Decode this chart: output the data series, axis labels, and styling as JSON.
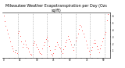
{
  "title": "Milwaukee Weather Evapotranspiration per Day (Ozs sq/ft)",
  "title_fontsize": 3.5,
  "dot_color": "#FF0000",
  "dot_color2": "#000000",
  "background_color": "#FFFFFF",
  "grid_color": "#999999",
  "ylim": [
    0.0,
    0.65
  ],
  "yticks": [
    0.1,
    0.2,
    0.3,
    0.4,
    0.5,
    0.6
  ],
  "ytick_labels": [
    ".1",
    ".2",
    ".3",
    ".4",
    ".5",
    ".6"
  ],
  "x_values": [
    0,
    1,
    2,
    3,
    4,
    5,
    6,
    7,
    8,
    9,
    10,
    11,
    12,
    13,
    14,
    15,
    16,
    17,
    18,
    19,
    20,
    21,
    22,
    23,
    24,
    25,
    26,
    27,
    28,
    29,
    30,
    31,
    32,
    33,
    34,
    35,
    36,
    37,
    38,
    39,
    40,
    41,
    42,
    43,
    44,
    45,
    46,
    47,
    48,
    49,
    50,
    51,
    52,
    53,
    54,
    55,
    56,
    57,
    58,
    59,
    60,
    61,
    62,
    63,
    64,
    65,
    66,
    67,
    68,
    69,
    70,
    71,
    72,
    73,
    74,
    75,
    76,
    77,
    78,
    79,
    80,
    81,
    82,
    83,
    84,
    85,
    86,
    87,
    88,
    89,
    90,
    91,
    92,
    93,
    94
  ],
  "y_values": [
    0.6,
    0.52,
    0.46,
    0.4,
    0.34,
    0.29,
    0.23,
    0.17,
    0.13,
    0.1,
    0.08,
    0.11,
    0.07,
    0.36,
    0.38,
    0.31,
    0.23,
    0.16,
    0.2,
    0.24,
    0.19,
    0.15,
    0.13,
    0.09,
    0.06,
    0.04,
    0.18,
    0.21,
    0.23,
    0.19,
    0.15,
    0.12,
    0.09,
    0.07,
    0.06,
    0.13,
    0.18,
    0.22,
    0.27,
    0.3,
    0.24,
    0.17,
    0.11,
    0.06,
    0.03,
    0.07,
    0.12,
    0.17,
    0.22,
    0.19,
    0.16,
    0.13,
    0.1,
    0.07,
    0.12,
    0.17,
    0.22,
    0.26,
    0.31,
    0.27,
    0.23,
    0.19,
    0.15,
    0.11,
    0.19,
    0.24,
    0.29,
    0.35,
    0.41,
    0.47,
    0.44,
    0.39,
    0.35,
    0.3,
    0.25,
    0.19,
    0.14,
    0.1,
    0.06,
    0.11,
    0.16,
    0.21,
    0.26,
    0.21,
    0.17,
    0.12,
    0.08,
    0.13,
    0.18,
    0.23,
    0.28,
    0.33,
    0.37,
    0.54,
    0.62
  ],
  "dot_colors": [
    "r",
    "r",
    "r",
    "r",
    "r",
    "r",
    "r",
    "r",
    "r",
    "r",
    "r",
    "k",
    "r",
    "r",
    "r",
    "r",
    "r",
    "r",
    "r",
    "r",
    "r",
    "r",
    "r",
    "r",
    "r",
    "r",
    "r",
    "r",
    "r",
    "r",
    "r",
    "r",
    "r",
    "r",
    "r",
    "r",
    "r",
    "r",
    "r",
    "r",
    "r",
    "r",
    "r",
    "r",
    "r",
    "r",
    "r",
    "r",
    "r",
    "r",
    "r",
    "r",
    "r",
    "r",
    "r",
    "r",
    "r",
    "r",
    "r",
    "r",
    "r",
    "r",
    "r",
    "r",
    "k",
    "r",
    "r",
    "r",
    "r",
    "r",
    "r",
    "r",
    "r",
    "r",
    "r",
    "r",
    "r",
    "r",
    "r",
    "r",
    "r",
    "r",
    "r",
    "r",
    "r",
    "r",
    "r",
    "r",
    "r",
    "r",
    "r",
    "r",
    "r",
    "r",
    "r"
  ],
  "vline_positions": [
    13,
    26,
    39,
    52,
    65,
    78,
    91
  ],
  "xlim": [
    -1,
    96
  ],
  "markersize": 1.0
}
